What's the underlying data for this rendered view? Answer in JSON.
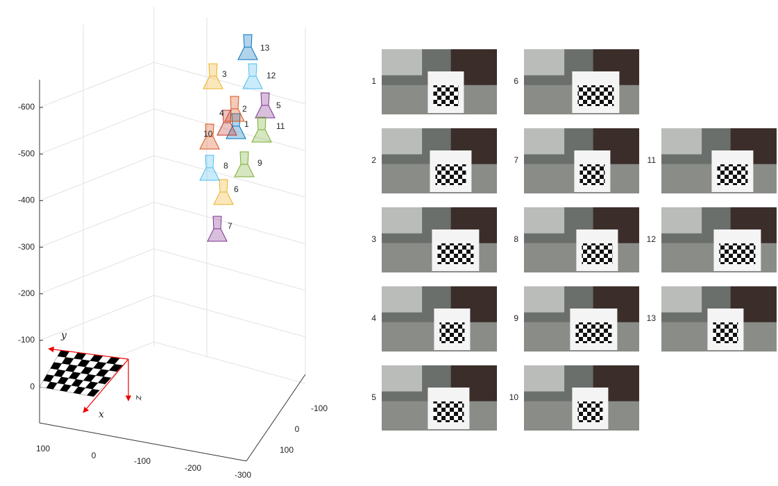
{
  "plot": {
    "z_ticks": [
      -600,
      -500,
      -400,
      -300,
      -200,
      -100,
      0
    ],
    "x_ticks": [
      100,
      0,
      -100,
      -200,
      -300
    ],
    "y_ticks": [
      -100,
      0,
      100
    ],
    "axis_labels": {
      "x": "x",
      "y": "y",
      "z": "z"
    },
    "cameras": [
      {
        "label": "1",
        "color": "#0072bd"
      },
      {
        "label": "2",
        "color": "#d95319"
      },
      {
        "label": "3",
        "color": "#edb120"
      },
      {
        "label": "4",
        "color": "#c0392b"
      },
      {
        "label": "5",
        "color": "#7e2f8e"
      },
      {
        "label": "6",
        "color": "#edb120"
      },
      {
        "label": "7",
        "color": "#7e2f8e"
      },
      {
        "label": "8",
        "color": "#4dbeee"
      },
      {
        "label": "9",
        "color": "#77ac30"
      },
      {
        "label": "10",
        "color": "#d95319"
      },
      {
        "label": "11",
        "color": "#77ac30"
      },
      {
        "label": "12",
        "color": "#4dbeee"
      },
      {
        "label": "13",
        "color": "#0072bd"
      }
    ]
  },
  "images": [
    {
      "label": "1"
    },
    {
      "label": "2"
    },
    {
      "label": "3"
    },
    {
      "label": "4"
    },
    {
      "label": "5"
    },
    {
      "label": "6"
    },
    {
      "label": "7"
    },
    {
      "label": "8"
    },
    {
      "label": "9"
    },
    {
      "label": "10"
    },
    {
      "label": "11"
    },
    {
      "label": "12"
    },
    {
      "label": "13"
    }
  ]
}
